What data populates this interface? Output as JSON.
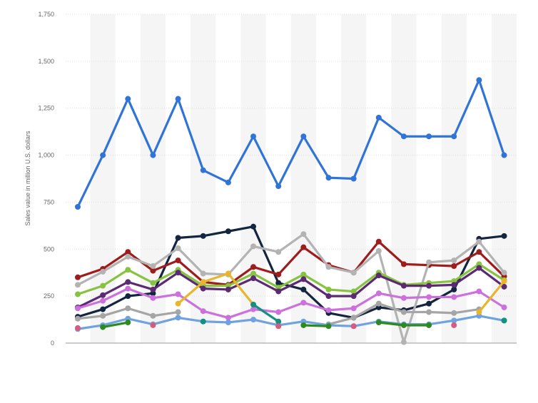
{
  "chart_data": {
    "type": "line",
    "ylabel": "Sales value in million U.S. dollars",
    "ylim": [
      0,
      1750
    ],
    "yticks": [
      0,
      250,
      500,
      750,
      1000,
      1250,
      1500,
      1750
    ],
    "ytick_labels": [
      "0",
      "250",
      "500",
      "750",
      "1,000",
      "1,250",
      "1,500",
      "1,750"
    ],
    "x": [
      1,
      2,
      3,
      4,
      5,
      6,
      7,
      8,
      9,
      10,
      11,
      12,
      13,
      14,
      15,
      16,
      17,
      18
    ],
    "grid": true,
    "series": [
      {
        "color": "#2f74d6",
        "values": [
          725,
          1000,
          1300,
          1000,
          1300,
          920,
          855,
          1100,
          835,
          1100,
          880,
          875,
          1200,
          1100,
          1100,
          1100,
          1400,
          1000
        ]
      },
      {
        "color": "#13253f",
        "values": [
          140,
          180,
          250,
          265,
          560,
          570,
          595,
          620,
          320,
          285,
          160,
          135,
          190,
          175,
          210,
          285,
          555,
          570
        ]
      },
      {
        "color": "#9f1c1c",
        "values": [
          350,
          395,
          485,
          385,
          440,
          325,
          310,
          405,
          365,
          510,
          415,
          375,
          540,
          420,
          415,
          410,
          485,
          355
        ]
      },
      {
        "color": "#b3b3b3",
        "values": [
          310,
          380,
          460,
          410,
          505,
          370,
          365,
          515,
          485,
          580,
          405,
          375,
          490,
          5,
          430,
          440,
          540,
          375
        ]
      },
      {
        "color": "#87c341",
        "values": [
          260,
          305,
          390,
          320,
          390,
          305,
          305,
          370,
          295,
          365,
          285,
          275,
          375,
          310,
          320,
          330,
          420,
          335
        ]
      },
      {
        "color": "#5c2a72",
        "values": [
          190,
          255,
          325,
          285,
          375,
          290,
          285,
          345,
          275,
          340,
          250,
          250,
          360,
          305,
          305,
          310,
          400,
          300
        ]
      },
      {
        "color": "#cc70dd",
        "values": [
          185,
          225,
          290,
          240,
          260,
          170,
          135,
          180,
          165,
          215,
          175,
          185,
          265,
          240,
          245,
          245,
          275,
          190
        ]
      },
      {
        "color": "#a5a5a5",
        "values": [
          130,
          145,
          185,
          145,
          165,
          null,
          null,
          null,
          null,
          null,
          100,
          135,
          210,
          165,
          165,
          160,
          180,
          null
        ]
      },
      {
        "color": "#6fa2e0",
        "values": [
          75,
          95,
          130,
          100,
          135,
          115,
          110,
          125,
          95,
          115,
          95,
          90,
          115,
          100,
          100,
          120,
          145,
          120
        ]
      },
      {
        "color": "#e8b52b",
        "values": [
          null,
          null,
          null,
          null,
          210,
          325,
          370,
          205,
          null,
          null,
          null,
          null,
          null,
          null,
          null,
          null,
          165,
          330
        ]
      },
      {
        "color": "#129180",
        "values": [
          null,
          null,
          null,
          null,
          null,
          115,
          null,
          205,
          115,
          null,
          null,
          null,
          null,
          null,
          null,
          null,
          null,
          120
        ]
      },
      {
        "color": "#2d8a1f",
        "values": [
          null,
          85,
          110,
          null,
          null,
          null,
          null,
          null,
          null,
          95,
          90,
          null,
          110,
          95,
          95,
          null,
          null,
          null
        ]
      },
      {
        "color": "#d45c80",
        "values": [
          80,
          null,
          null,
          95,
          null,
          null,
          null,
          null,
          90,
          null,
          null,
          90,
          null,
          null,
          null,
          95,
          null,
          null
        ]
      }
    ]
  }
}
